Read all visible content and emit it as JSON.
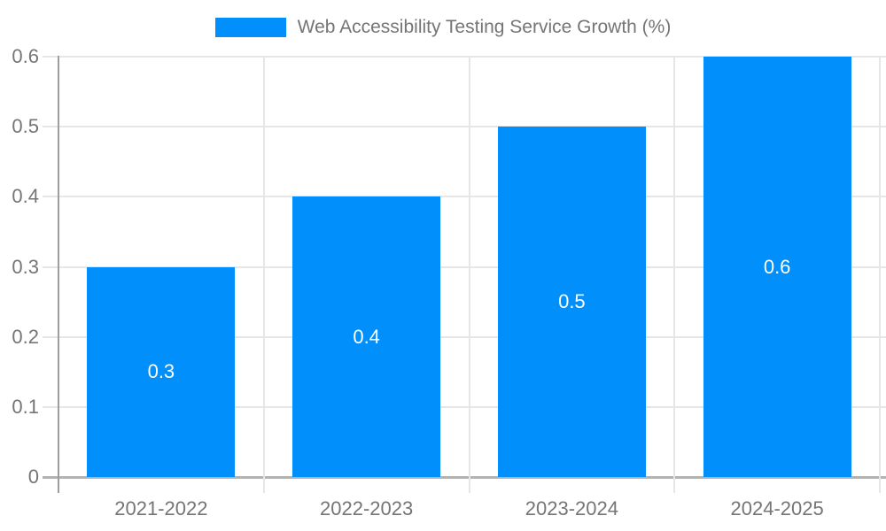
{
  "legend": {
    "label": "Web Accessibility Testing Service Growth (%)",
    "swatch_color": "#008FFB"
  },
  "chart_data": {
    "type": "bar",
    "title": "Web Accessibility Testing Service Growth (%)",
    "series": [
      {
        "name": "Web Accessibility Testing Service Growth (%)",
        "values": [
          0.3,
          0.4,
          0.5,
          0.6
        ]
      }
    ],
    "categories": [
      "2021-2022",
      "2022-2023",
      "2023-2024",
      "2024-2025"
    ],
    "bar_labels": [
      "0.3",
      "0.4",
      "0.5",
      "0.6"
    ],
    "xlabel": "",
    "ylabel": "",
    "ylim": [
      0,
      0.6
    ],
    "yticks": [
      0,
      0.1,
      0.2,
      0.3,
      0.4,
      0.5,
      0.6
    ],
    "ytick_labels": [
      "0",
      "0.1",
      "0.2",
      "0.3",
      "0.4",
      "0.5",
      "0.6"
    ],
    "grid": true,
    "legend_position": "top-center",
    "colors": {
      "bar": "#008FFB",
      "bar_label_text": "#ffffff",
      "axis_text": "#757575",
      "gridline": "#e6e6e6",
      "x_axis_line": "#b3b3b3",
      "y_axis_line": "#9e9e9e"
    }
  }
}
